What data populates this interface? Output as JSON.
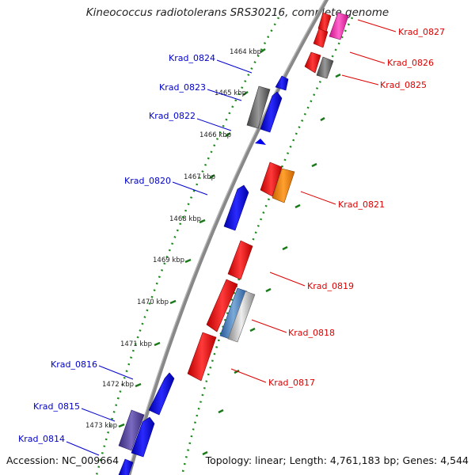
{
  "title": "Kineococcus radiotolerans SRS30216, complete genome",
  "footer": {
    "accession": "Accession: NC_009664",
    "summary": "Topology: linear; Length: 4,761,183 bp; Genes: 4,544"
  },
  "colors": {
    "forward_label": "#0000cc",
    "reverse_label": "#dd0000",
    "backbone": "#888888",
    "tick": "#1a7a1a"
  },
  "ruler_ticks": [
    "1464 kbp",
    "1465 kbp",
    "1466 kbp",
    "1467 kbp",
    "1468 kbp",
    "1469 kbp",
    "1470 kbp",
    "1471 kbp",
    "1472 kbp",
    "1473 kbp"
  ],
  "forward_genes": [
    {
      "label": "Krad_0824",
      "color": "#0000ee"
    },
    {
      "label": "Krad_0823",
      "color": "#0000ee"
    },
    {
      "label": "Krad_0822",
      "color": "#0000ee"
    },
    {
      "label": "Krad_0820",
      "color": "#0000ee"
    },
    {
      "label": "Krad_0816",
      "color": "#0000ee"
    },
    {
      "label": "Krad_0815",
      "color": "#5a4a9a"
    },
    {
      "label": "Krad_0814",
      "color": "#0000ee"
    }
  ],
  "reverse_genes": [
    {
      "label": "Krad_0827",
      "color": "#ff33aa"
    },
    {
      "label": "Krad_0826",
      "color": "#ee0000"
    },
    {
      "label": "Krad_0825",
      "color": "#666666"
    },
    {
      "label": "Krad_0821",
      "color": "#ff8800"
    },
    {
      "label": "Krad_0819",
      "color": "#ee0000"
    },
    {
      "label": "Krad_0818",
      "color": "#4a7fb5"
    },
    {
      "label": "Krad_0817",
      "color": "#ee0000"
    }
  ]
}
